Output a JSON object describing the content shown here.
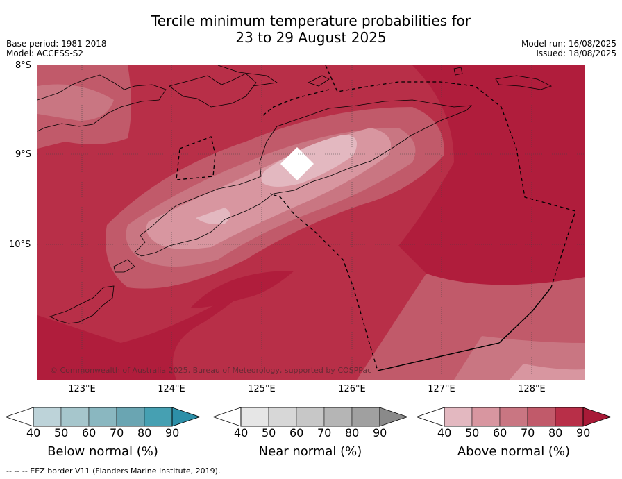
{
  "title": {
    "line1": "Tercile minimum temperature probabilities for",
    "line2": "23 to 29 August 2025"
  },
  "meta": {
    "base_period": "Base period: 1981-2018",
    "model": "Model: ACCESS-S2",
    "model_run": "Model run: 16/08/2025",
    "issued": "Issued: 18/08/2025"
  },
  "map": {
    "latitude_labels": [
      "8°S",
      "9°S",
      "10°S"
    ],
    "longitude_labels": [
      "123°E",
      "124°E",
      "125°E",
      "126°E",
      "127°E",
      "128°E"
    ],
    "copyright": "© Commonwealth of Australia 2025, Bureau of Meteorology, supported by COSPPac"
  },
  "colorbars": [
    {
      "title": "Below normal (%)",
      "ticks": [
        "40",
        "50",
        "60",
        "70",
        "80",
        "90"
      ],
      "colors": [
        "#bdd3d9",
        "#a6c6cc",
        "#8ab7c0",
        "#6aa5b2",
        "#46a0b2",
        "#2d8fa8"
      ]
    },
    {
      "title": "Near normal (%)",
      "ticks": [
        "40",
        "50",
        "60",
        "70",
        "80",
        "90"
      ],
      "colors": [
        "#e6e6e6",
        "#d7d7d7",
        "#c7c7c7",
        "#b5b5b5",
        "#a0a0a0",
        "#8a8a8a"
      ]
    },
    {
      "title": "Above normal (%)",
      "ticks": [
        "40",
        "50",
        "60",
        "70",
        "80",
        "90"
      ],
      "colors": [
        "#e3b8c0",
        "#d896a0",
        "#c97682",
        "#c15a6a",
        "#b82f48",
        "#a81a37"
      ]
    }
  ],
  "footer": "--  --  -- EEZ border V11 (Flanders Marine Institute, 2019)."
}
